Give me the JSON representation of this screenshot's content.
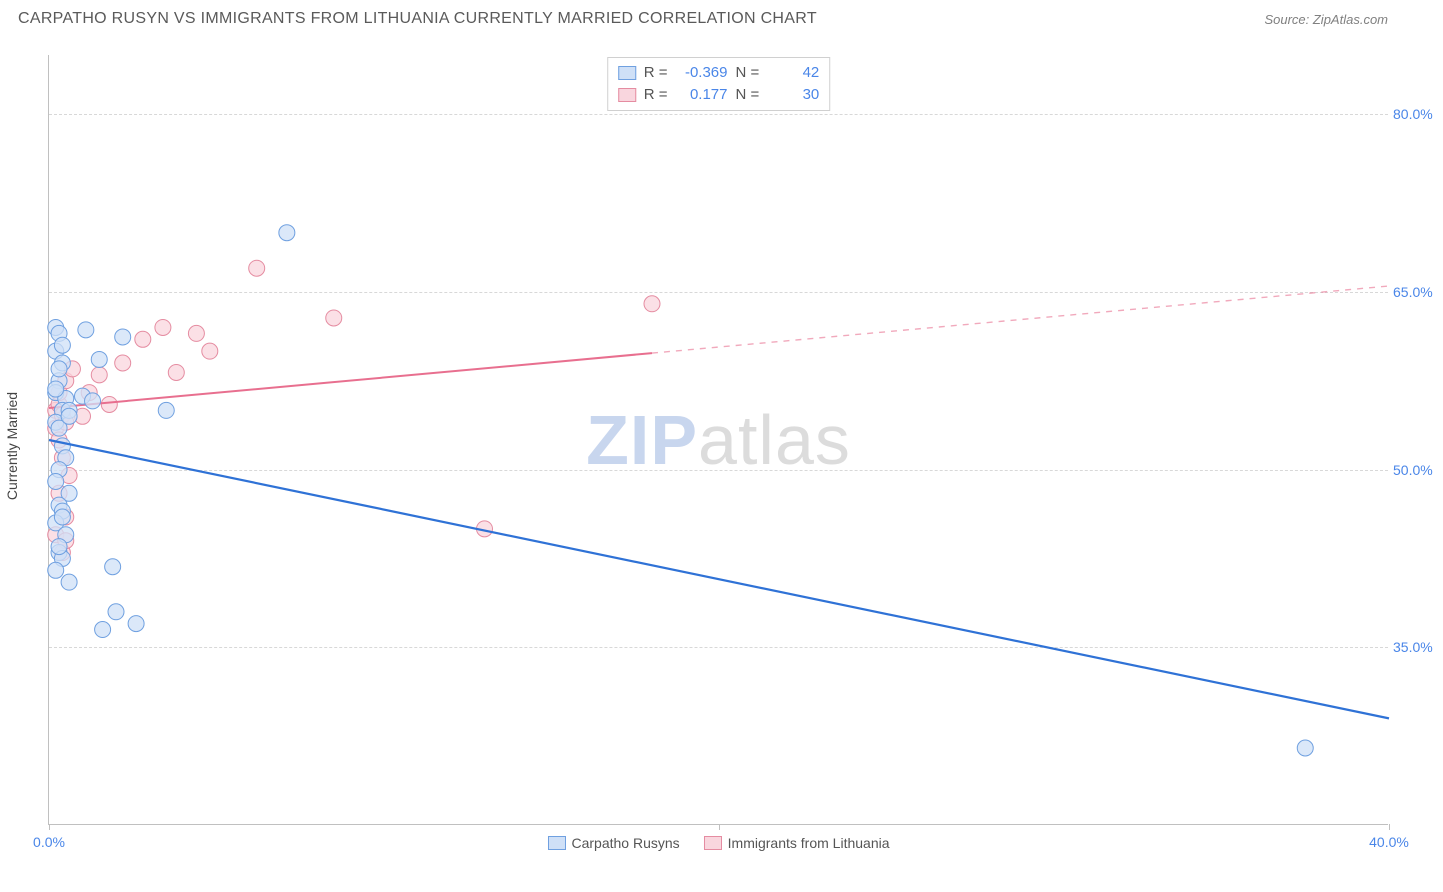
{
  "title": "CARPATHO RUSYN VS IMMIGRANTS FROM LITHUANIA CURRENTLY MARRIED CORRELATION CHART",
  "source": "Source: ZipAtlas.com",
  "ylabel": "Currently Married",
  "watermark": {
    "part1": "ZIP",
    "part2": "atlas"
  },
  "chart": {
    "type": "scatter_with_regression",
    "background_color": "#ffffff",
    "grid_color": "#d8d8d8",
    "axis_color": "#c0c0c0",
    "tick_label_color": "#4a86e8",
    "tick_fontsize": 14,
    "xlim": [
      0,
      40
    ],
    "ylim": [
      20,
      85
    ],
    "xticks": [
      {
        "value": 0,
        "label": "0.0%"
      },
      {
        "value": 20,
        "label": ""
      },
      {
        "value": 40,
        "label": "40.0%"
      }
    ],
    "yticks": [
      {
        "value": 35,
        "label": "35.0%"
      },
      {
        "value": 50,
        "label": "50.0%"
      },
      {
        "value": 65,
        "label": "65.0%"
      },
      {
        "value": 80,
        "label": "80.0%"
      }
    ],
    "stats_box": {
      "rows": [
        {
          "series": "a",
          "r_label": "R =",
          "r": "-0.369",
          "n_label": "N =",
          "n": "42"
        },
        {
          "series": "b",
          "r_label": "R =",
          "r": "0.177",
          "n_label": "N =",
          "n": "30"
        }
      ]
    },
    "legend": [
      {
        "series": "a",
        "label": "Carpatho Rusyns"
      },
      {
        "series": "b",
        "label": "Immigrants from Lithuania"
      }
    ],
    "series": {
      "a": {
        "label": "Carpatho Rusyns",
        "marker_fill": "#cfe0f7",
        "marker_stroke": "#6fa0e0",
        "marker_opacity": 0.75,
        "marker_radius": 8,
        "line_color": "#2f72d6",
        "line_width": 2.2,
        "regression": {
          "x1": 0,
          "y1": 52.5,
          "x2": 40,
          "y2": 29
        },
        "solid_extent_x": 40,
        "points": [
          [
            0.2,
            62
          ],
          [
            0.3,
            61.5
          ],
          [
            0.2,
            60
          ],
          [
            0.4,
            59
          ],
          [
            0.3,
            57.5
          ],
          [
            0.2,
            56.5
          ],
          [
            0.5,
            56
          ],
          [
            0.4,
            55
          ],
          [
            0.2,
            54
          ],
          [
            0.3,
            53.5
          ],
          [
            0.6,
            55
          ],
          [
            0.4,
            52
          ],
          [
            0.5,
            51
          ],
          [
            0.3,
            50
          ],
          [
            0.2,
            49
          ],
          [
            0.6,
            48
          ],
          [
            0.3,
            47
          ],
          [
            0.4,
            46.5
          ],
          [
            0.2,
            45.5
          ],
          [
            0.5,
            44.5
          ],
          [
            0.3,
            43
          ],
          [
            0.4,
            42.5
          ],
          [
            0.2,
            41.5
          ],
          [
            0.6,
            40.5
          ],
          [
            0.3,
            43.5
          ],
          [
            0.4,
            46
          ],
          [
            0.2,
            56.8
          ],
          [
            0.3,
            58.5
          ],
          [
            0.4,
            60.5
          ],
          [
            0.6,
            54.5
          ],
          [
            1.0,
            56.2
          ],
          [
            1.1,
            61.8
          ],
          [
            1.3,
            55.8
          ],
          [
            1.5,
            59.3
          ],
          [
            2.2,
            61.2
          ],
          [
            3.5,
            55
          ],
          [
            2.0,
            38
          ],
          [
            2.6,
            37
          ],
          [
            1.6,
            36.5
          ],
          [
            1.9,
            41.8
          ],
          [
            7.1,
            70
          ],
          [
            37.5,
            26.5
          ]
        ]
      },
      "b": {
        "label": "Immigrants from Lithuania",
        "marker_fill": "#f9d6de",
        "marker_stroke": "#e58ca1",
        "marker_opacity": 0.75,
        "marker_radius": 8,
        "line_color": "#e86f8f",
        "line_width": 2.0,
        "regression": {
          "x1": 0,
          "y1": 55.2,
          "x2": 40,
          "y2": 65.5
        },
        "solid_extent_x": 18,
        "points": [
          [
            0.2,
            55
          ],
          [
            0.3,
            55.5
          ],
          [
            0.4,
            54.6
          ],
          [
            0.2,
            53.5
          ],
          [
            0.5,
            54
          ],
          [
            0.3,
            52.5
          ],
          [
            0.4,
            51
          ],
          [
            0.6,
            49.5
          ],
          [
            0.3,
            48
          ],
          [
            0.5,
            46
          ],
          [
            0.2,
            44.5
          ],
          [
            0.4,
            43
          ],
          [
            0.3,
            56.5
          ],
          [
            0.5,
            57.5
          ],
          [
            0.7,
            58.5
          ],
          [
            1.0,
            54.5
          ],
          [
            1.2,
            56.5
          ],
          [
            1.5,
            58
          ],
          [
            1.8,
            55.5
          ],
          [
            2.2,
            59
          ],
          [
            2.8,
            61
          ],
          [
            3.4,
            62
          ],
          [
            3.8,
            58.2
          ],
          [
            4.4,
            61.5
          ],
          [
            4.8,
            60
          ],
          [
            6.2,
            67
          ],
          [
            8.5,
            62.8
          ],
          [
            13,
            45
          ],
          [
            18,
            64
          ],
          [
            0.5,
            44
          ]
        ]
      }
    }
  }
}
